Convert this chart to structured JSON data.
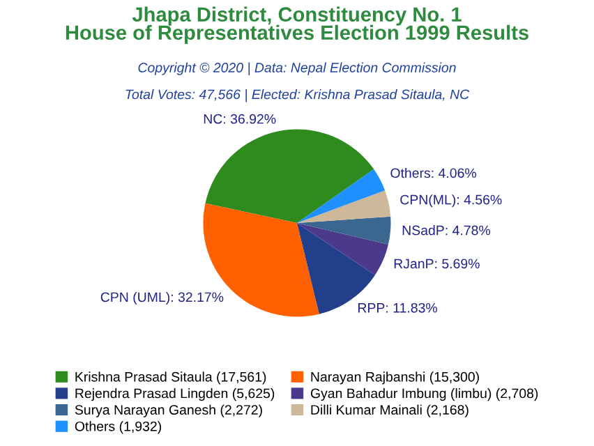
{
  "chart_data": {
    "type": "pie",
    "title": "Jhapa District, Constituency No. 1\nHouse of Representatives Election 1999 Results",
    "subtitle": "Copyright © 2020 | Data: Nepal Election Commission",
    "annotations": [
      "Total Votes: 47,566 | Elected: Krishna Prasad Sitaula, NC"
    ],
    "categories": [
      "Krishna Prasad Sitaula (17,561)",
      "Narayan Rajbanshi (15,300)",
      "Rejendra Prasad Lingden (5,625)",
      "Gyan Bahadur Imbung (limbu) (2,708)",
      "Surya Narayan Ganesh (2,272)",
      "Dilli Kumar Mainali (2,168)",
      "Others (1,932)"
    ],
    "values": [
      36.92,
      32.17,
      11.83,
      5.69,
      4.78,
      4.56,
      4.06
    ],
    "value_labels": [
      "NC: 36.92%",
      "CPN (UML): 32.17%",
      "RPP: 11.83%",
      "RJanP: 5.69%",
      "NSadP: 4.78%",
      "CPN(ML): 4.56%",
      "Others: 4.06%"
    ],
    "colors": [
      "#2e8b1e",
      "#ff6000",
      "#233f8c",
      "#4b3a8c",
      "#3a6690",
      "#cdb99a",
      "#1e90ff"
    ],
    "legend": "bottom"
  }
}
